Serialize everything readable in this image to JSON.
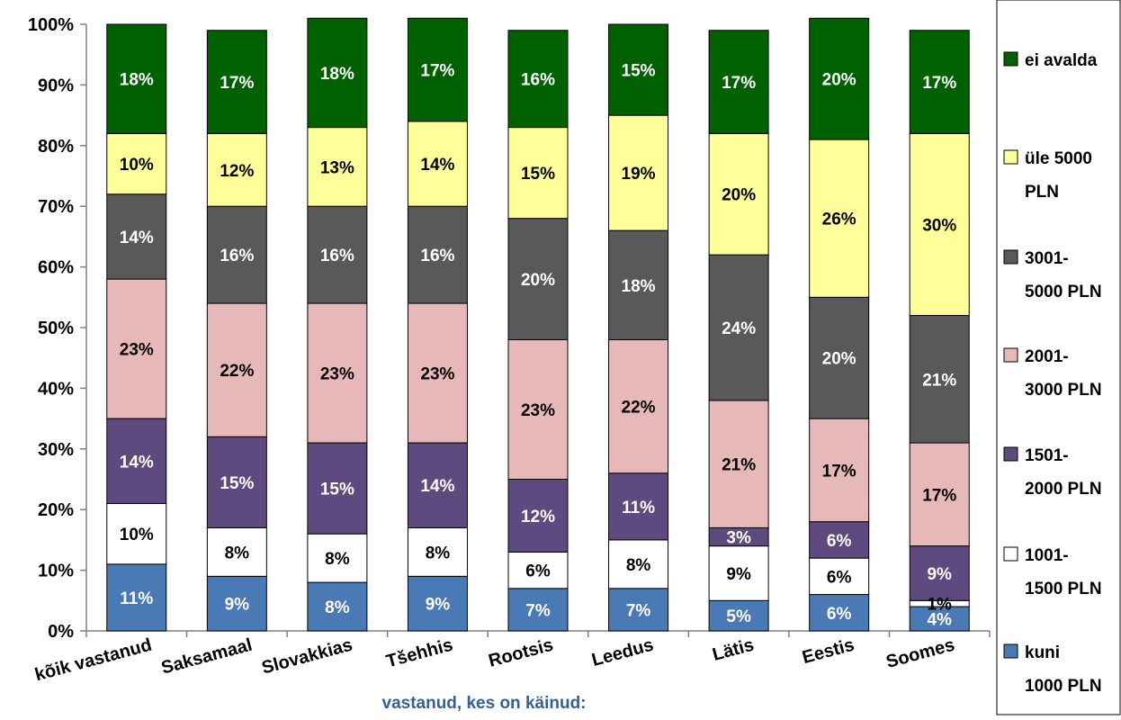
{
  "chart_data": {
    "type": "bar",
    "stacked": true,
    "percent": true,
    "categories": [
      "kõik vastanud",
      "Saksamaal",
      "Slovakkias",
      "Tšehhis",
      "Rootsis",
      "Leedus",
      "Lätis",
      "Eestis",
      "Soomes"
    ],
    "xlabel": "vastanud, kes on käinud:",
    "ylabel": "",
    "ylim": [
      0,
      100
    ],
    "yticks": [
      "0%",
      "10%",
      "20%",
      "30%",
      "40%",
      "50%",
      "60%",
      "70%",
      "80%",
      "90%",
      "100%"
    ],
    "grid": false,
    "legend_position": "right",
    "series": [
      {
        "name": "kuni 1000 PLN",
        "color": "#4a7ab5",
        "label_color": "#ffffff",
        "values": [
          11,
          9,
          8,
          9,
          7,
          7,
          5,
          6,
          4
        ]
      },
      {
        "name": "1001-1500 PLN",
        "color": "#ffffff",
        "label_color": "#000000",
        "values": [
          10,
          8,
          8,
          8,
          6,
          8,
          9,
          6,
          1
        ]
      },
      {
        "name": "1501-2000 PLN",
        "color": "#5e4a7e",
        "label_color": "#ffffff",
        "values": [
          14,
          15,
          15,
          14,
          12,
          11,
          3,
          6,
          9
        ]
      },
      {
        "name": "2001-3000 PLN",
        "color": "#e6b8b7",
        "label_color": "#000000",
        "values": [
          23,
          22,
          23,
          23,
          23,
          22,
          21,
          17,
          17
        ]
      },
      {
        "name": "3001-5000 PLN",
        "color": "#595959",
        "label_color": "#ffffff",
        "values": [
          14,
          16,
          16,
          16,
          20,
          18,
          24,
          20,
          21
        ]
      },
      {
        "name": "üle 5000 PLN",
        "color": "#ffff99",
        "label_color": "#000000",
        "values": [
          10,
          12,
          13,
          14,
          15,
          19,
          20,
          26,
          30
        ]
      },
      {
        "name": "ei avalda",
        "color": "#006100",
        "label_color": "#ffffff",
        "values": [
          18,
          17,
          18,
          17,
          16,
          15,
          17,
          20,
          17
        ]
      }
    ],
    "legend": [
      {
        "lines": [
          "ei avalda"
        ],
        "color": "#006100"
      },
      {
        "lines": [
          "üle 5000",
          "PLN"
        ],
        "color": "#ffff99"
      },
      {
        "lines": [
          "3001-",
          "5000 PLN"
        ],
        "color": "#595959"
      },
      {
        "lines": [
          "2001-",
          "3000 PLN"
        ],
        "color": "#e6b8b7"
      },
      {
        "lines": [
          "1501-",
          "2000 PLN"
        ],
        "color": "#5e4a7e"
      },
      {
        "lines": [
          "1001-",
          "1500 PLN"
        ],
        "color": "#ffffff"
      },
      {
        "lines": [
          "kuni",
          "1000 PLN"
        ],
        "color": "#4a7ab5"
      }
    ]
  }
}
